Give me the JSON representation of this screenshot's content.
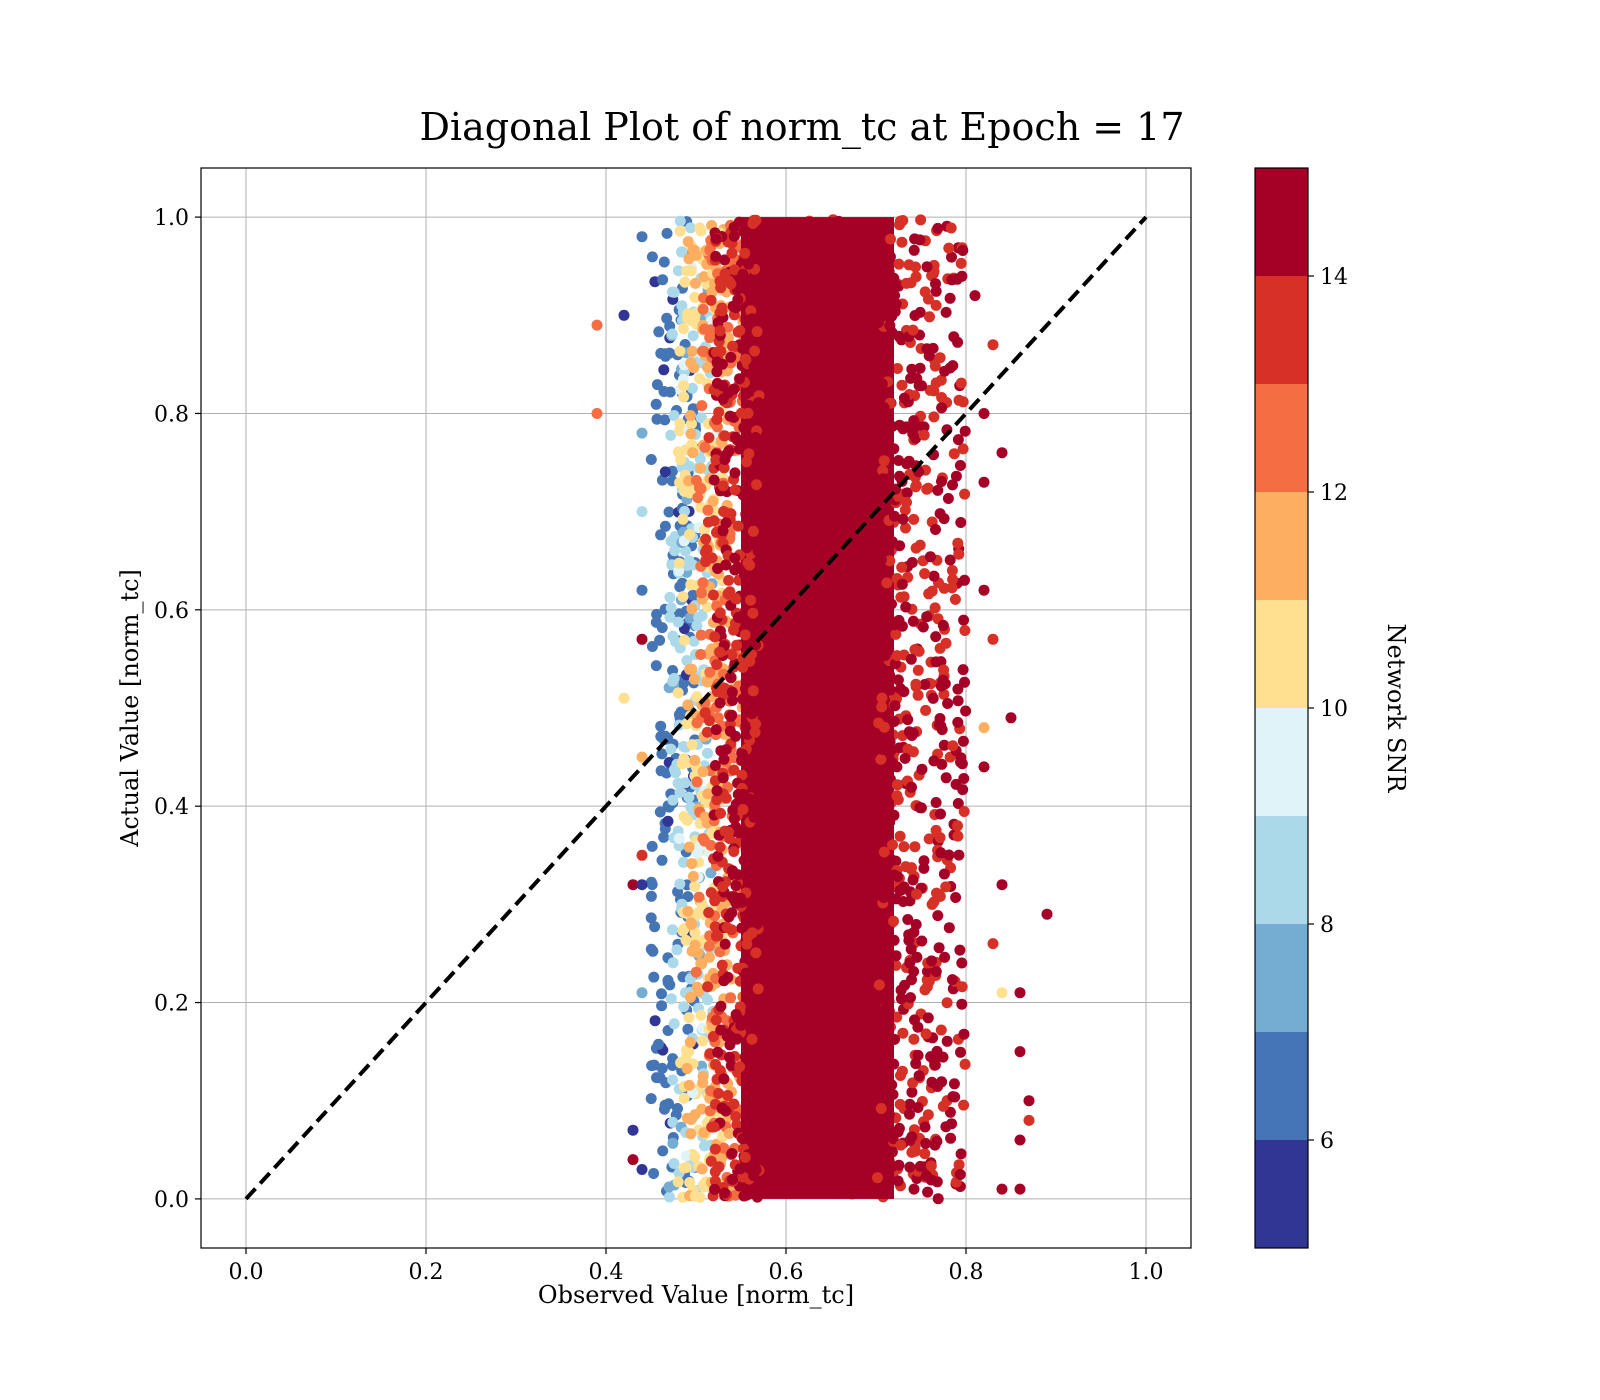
{
  "chart_data": {
    "type": "scatter",
    "title": "Diagonal Plot of norm_tc at Epoch = 17",
    "xlabel": "Observed Value [norm_tc]",
    "ylabel": "Actual Value [norm_tc]",
    "xlim": [
      -0.05,
      1.05
    ],
    "ylim": [
      -0.05,
      1.05
    ],
    "xticks": [
      0.0,
      0.2,
      0.4,
      0.6,
      0.8,
      1.0
    ],
    "xtick_labels": [
      "0.0",
      "0.2",
      "0.4",
      "0.6",
      "0.8",
      "1.0"
    ],
    "yticks": [
      0.0,
      0.2,
      0.4,
      0.6,
      0.8,
      1.0
    ],
    "ytick_labels": [
      "0.0",
      "0.2",
      "0.4",
      "0.6",
      "0.8",
      "1.0"
    ],
    "grid": true,
    "reference_line": {
      "style": "dashed",
      "color": "#000000",
      "x": [
        0.0,
        1.0
      ],
      "y": [
        0.0,
        1.0
      ]
    },
    "point_clusters": [
      {
        "x_range": [
          0.55,
          0.72
        ],
        "y_range": [
          0.0,
          1.0
        ],
        "snr": 15,
        "color": "#a50026"
      },
      {
        "x_range": [
          0.51,
          0.78
        ],
        "y_range": [
          0.0,
          1.0
        ],
        "snr": 14,
        "color": "#d73027"
      },
      {
        "x_range": [
          0.5,
          0.56
        ],
        "y_range": [
          0.0,
          1.0
        ],
        "snr": 12,
        "color": "#f46d43"
      },
      {
        "x_range": [
          0.49,
          0.54
        ],
        "y_range": [
          0.0,
          1.0
        ],
        "snr": 11,
        "color": "#fdae61"
      },
      {
        "x_range": [
          0.48,
          0.53
        ],
        "y_range": [
          0.0,
          1.0
        ],
        "snr": 10,
        "color": "#fee090"
      },
      {
        "x_range": [
          0.47,
          0.52
        ],
        "y_range": [
          0.0,
          1.0
        ],
        "snr": 8,
        "color": "#abd9e9"
      },
      {
        "x_range": [
          0.45,
          0.5
        ],
        "y_range": [
          0.0,
          1.0
        ],
        "snr": 6,
        "color": "#4575b4"
      }
    ],
    "outliers": [
      {
        "x": 0.39,
        "y": 0.89,
        "snr": 12
      },
      {
        "x": 0.39,
        "y": 0.8,
        "snr": 12
      },
      {
        "x": 0.42,
        "y": 0.9,
        "snr": 5
      },
      {
        "x": 0.44,
        "y": 0.98,
        "snr": 6
      },
      {
        "x": 0.44,
        "y": 0.78,
        "snr": 7
      },
      {
        "x": 0.44,
        "y": 0.7,
        "snr": 8
      },
      {
        "x": 0.44,
        "y": 0.62,
        "snr": 6
      },
      {
        "x": 0.44,
        "y": 0.57,
        "snr": 15
      },
      {
        "x": 0.42,
        "y": 0.51,
        "snr": 10
      },
      {
        "x": 0.44,
        "y": 0.45,
        "snr": 11
      },
      {
        "x": 0.44,
        "y": 0.35,
        "snr": 13
      },
      {
        "x": 0.43,
        "y": 0.32,
        "snr": 15
      },
      {
        "x": 0.44,
        "y": 0.32,
        "snr": 5
      },
      {
        "x": 0.44,
        "y": 0.21,
        "snr": 7
      },
      {
        "x": 0.43,
        "y": 0.07,
        "snr": 5
      },
      {
        "x": 0.43,
        "y": 0.04,
        "snr": 14
      },
      {
        "x": 0.44,
        "y": 0.03,
        "snr": 5
      },
      {
        "x": 0.81,
        "y": 0.92,
        "snr": 15
      },
      {
        "x": 0.83,
        "y": 0.87,
        "snr": 13
      },
      {
        "x": 0.84,
        "y": 0.76,
        "snr": 15
      },
      {
        "x": 0.85,
        "y": 0.49,
        "snr": 15
      },
      {
        "x": 0.84,
        "y": 0.32,
        "snr": 14
      },
      {
        "x": 0.89,
        "y": 0.29,
        "snr": 14
      },
      {
        "x": 0.86,
        "y": 0.21,
        "snr": 14
      },
      {
        "x": 0.84,
        "y": 0.21,
        "snr": 10
      },
      {
        "x": 0.86,
        "y": 0.15,
        "snr": 14
      },
      {
        "x": 0.87,
        "y": 0.1,
        "snr": 15
      },
      {
        "x": 0.87,
        "y": 0.08,
        "snr": 13
      },
      {
        "x": 0.86,
        "y": 0.06,
        "snr": 14
      },
      {
        "x": 0.86,
        "y": 0.01,
        "snr": 15
      },
      {
        "x": 0.84,
        "y": 0.01,
        "snr": 14
      },
      {
        "x": 0.82,
        "y": 0.48,
        "snr": 11
      },
      {
        "x": 0.82,
        "y": 0.44,
        "snr": 15
      },
      {
        "x": 0.83,
        "y": 0.57,
        "snr": 13
      },
      {
        "x": 0.82,
        "y": 0.62,
        "snr": 15
      },
      {
        "x": 0.82,
        "y": 0.73,
        "snr": 15
      },
      {
        "x": 0.82,
        "y": 0.8,
        "snr": 14
      },
      {
        "x": 0.83,
        "y": 0.26,
        "snr": 13
      }
    ],
    "colorbar": {
      "label": "Network SNR",
      "range": [
        5,
        15
      ],
      "ticks": [
        6,
        8,
        10,
        12,
        14
      ],
      "tick_labels": [
        "6",
        "8",
        "10",
        "12",
        "14"
      ],
      "bins": [
        {
          "from": 5,
          "to": 6,
          "color": "#313695"
        },
        {
          "from": 6,
          "to": 7,
          "color": "#4575b4"
        },
        {
          "from": 7,
          "to": 8,
          "color": "#74add1"
        },
        {
          "from": 8,
          "to": 9,
          "color": "#abd9e9"
        },
        {
          "from": 9,
          "to": 10,
          "color": "#e0f3f8"
        },
        {
          "from": 10,
          "to": 11,
          "color": "#fee090"
        },
        {
          "from": 11,
          "to": 12,
          "color": "#fdae61"
        },
        {
          "from": 12,
          "to": 13,
          "color": "#f46d43"
        },
        {
          "from": 13,
          "to": 14,
          "color": "#d73027"
        },
        {
          "from": 14,
          "to": 15,
          "color": "#a50026"
        }
      ]
    }
  }
}
